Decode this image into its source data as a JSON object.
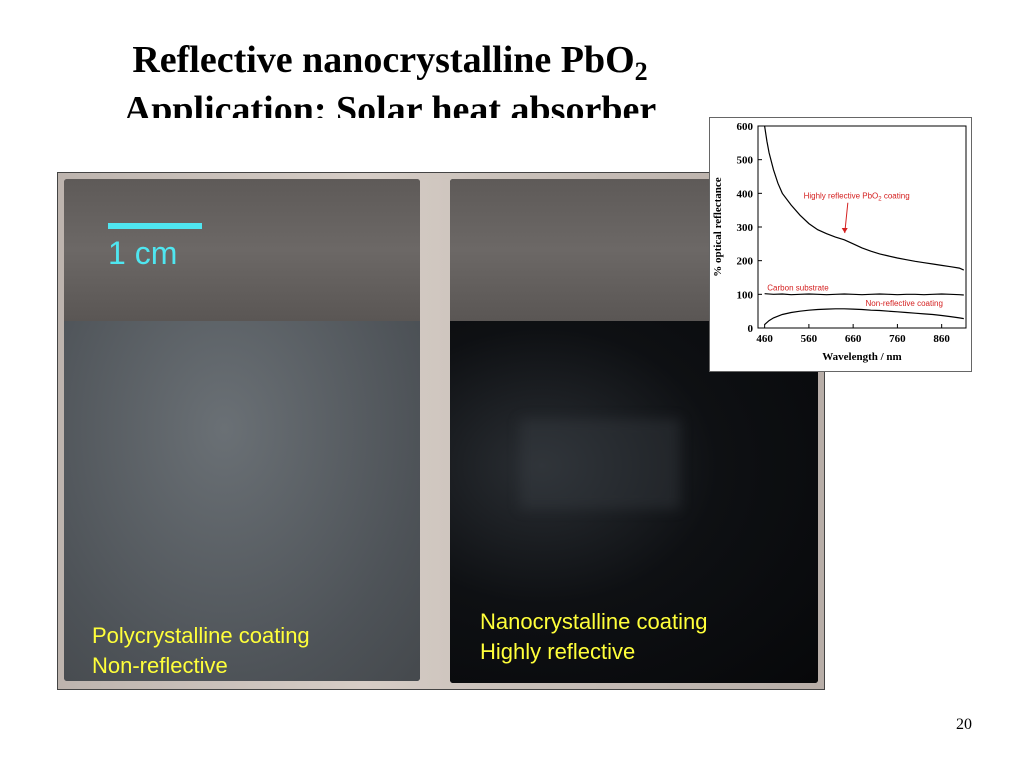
{
  "slide": {
    "title_line1": "Reflective nanocrystalline PbO",
    "title_line1_sub": "2",
    "title_line2": "Application: Solar heat absorber",
    "page_number": "20"
  },
  "photo": {
    "scale_label": "1 cm",
    "left_caption_line1": "Polycrystalline coating",
    "left_caption_line2": "Non-reflective",
    "right_caption_line1": "Nanocrystalline coating",
    "right_caption_line2": "Highly reflective",
    "scale_color": "#4fe6f0",
    "caption_color": "#ffff3a"
  },
  "chart_data": {
    "type": "line",
    "xlabel": "Wavelength / nm",
    "ylabel": "% optical reflectance",
    "xlim": [
      445,
      915
    ],
    "ylim": [
      0,
      600
    ],
    "x_ticks": [
      460,
      560,
      660,
      760,
      860
    ],
    "y_ticks": [
      0,
      100,
      200,
      300,
      400,
      500,
      600
    ],
    "annotations": [
      {
        "text": "Highly reflective PbO",
        "sub": "2",
        "text_after": " coating",
        "color": "#d42020"
      },
      {
        "text": "Carbon substrate",
        "color": "#d42020"
      },
      {
        "text": "Non-reflective coating",
        "color": "#d42020"
      }
    ],
    "series": [
      {
        "x": [
          460,
          465,
          470,
          480,
          490,
          500,
          520,
          540,
          560,
          580,
          600,
          620,
          640,
          660,
          680,
          700,
          720,
          740,
          760,
          780,
          800,
          820,
          840,
          860,
          880,
          900,
          910
        ],
        "values": [
          600,
          555,
          520,
          470,
          430,
          400,
          365,
          335,
          310,
          292,
          280,
          270,
          262,
          250,
          238,
          228,
          220,
          214,
          208,
          203,
          198,
          194,
          190,
          186,
          182,
          178,
          172
        ]
      },
      {
        "x": [
          460,
          480,
          500,
          520,
          540,
          560,
          580,
          600,
          620,
          640,
          660,
          680,
          700,
          720,
          740,
          760,
          780,
          800,
          820,
          840,
          860,
          880,
          900,
          910
        ],
        "values": [
          102,
          100,
          101,
          99,
          100,
          101,
          100,
          99,
          100,
          101,
          100,
          99,
          100,
          101,
          100,
          99,
          100,
          100,
          99,
          100,
          101,
          100,
          99,
          98
        ]
      },
      {
        "x": [
          460,
          470,
          480,
          500,
          520,
          540,
          560,
          580,
          600,
          620,
          640,
          660,
          680,
          700,
          720,
          740,
          760,
          780,
          800,
          820,
          840,
          860,
          880,
          900,
          910
        ],
        "values": [
          10,
          22,
          30,
          40,
          46,
          50,
          53,
          55,
          56,
          57,
          57,
          56,
          55,
          53,
          52,
          50,
          48,
          46,
          44,
          42,
          40,
          37,
          34,
          30,
          28
        ]
      }
    ]
  }
}
